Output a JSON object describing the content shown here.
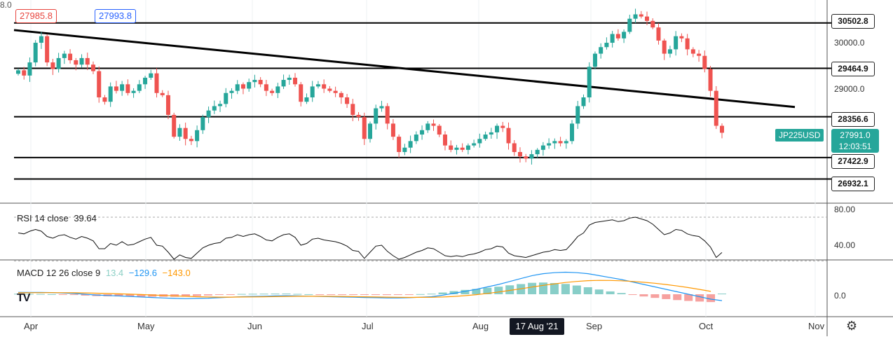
{
  "header": {
    "bid": "27985.8",
    "spread": "8.0",
    "ask": "27993.8"
  },
  "symbol": "JP225USD",
  "current": {
    "price": "27991.0",
    "countdown": "12:03:51"
  },
  "rsi": {
    "label": "RSI 14 close",
    "value": "39.64",
    "ticks": [
      "80.00",
      "40.00"
    ]
  },
  "macd": {
    "label": "MACD 12 26 close 9",
    "hist": "13.4",
    "macd": "−129.6",
    "signal": "−143.0",
    "tick": "0.0"
  },
  "x_axis": {
    "months": [
      "Apr",
      "May",
      "Jun",
      "Jul",
      "Aug",
      "Sep",
      "Oct",
      "Nov"
    ],
    "highlight": "17 Aug '21"
  },
  "colors": {
    "up": "#26a69a",
    "down": "#ef5350",
    "macd_line": "#2196f3",
    "signal_line": "#ff9800",
    "hist_up": "#26a69a",
    "hist_down": "#ef5350"
  },
  "icons": {
    "settings": "gear-icon",
    "logo": "tradingview-logo-icon"
  },
  "chart_data": {
    "type": "candlestick",
    "price_ticks": [
      "30000.0",
      "29000.0"
    ],
    "levels": [
      "30502.8",
      "29464.9",
      "28356.6",
      "27422.9",
      "26932.1"
    ],
    "level_values": [
      30502.8,
      29464.9,
      28356.6,
      27422.9,
      26932.1
    ],
    "trendline": {
      "start_value": 30340,
      "end_value": 28580
    },
    "ylim": [
      26700,
      30900
    ],
    "closes": [
      29420,
      29300,
      29600,
      30050,
      30200,
      29600,
      29450,
      29700,
      29800,
      29650,
      29550,
      29700,
      29550,
      29400,
      28800,
      28700,
      29050,
      28950,
      29100,
      28900,
      28950,
      29100,
      29250,
      29350,
      28900,
      28850,
      28400,
      27900,
      28100,
      27850,
      27800,
      28050,
      28350,
      28500,
      28600,
      28650,
      28900,
      28950,
      29100,
      29000,
      29150,
      29200,
      29100,
      28950,
      28900,
      29050,
      29200,
      29250,
      29100,
      28700,
      28800,
      29050,
      29100,
      29000,
      28950,
      28900,
      28800,
      28650,
      28400,
      28350,
      27850,
      28200,
      28550,
      28600,
      28200,
      27900,
      27550,
      27650,
      27800,
      27950,
      28050,
      28200,
      28150,
      27950,
      27700,
      27600,
      27650,
      27600,
      27700,
      27750,
      27850,
      27950,
      28000,
      28150,
      28100,
      27750,
      27550,
      27450,
      27400,
      27500,
      27600,
      27700,
      27750,
      27800,
      27750,
      27800,
      28200,
      28600,
      28800,
      29500,
      29800,
      29950,
      30050,
      30250,
      30150,
      30300,
      30600,
      30700,
      30650,
      30550,
      30400,
      30100,
      29800,
      29900,
      30200,
      30150,
      29900,
      29800,
      29750,
      29450,
      28950,
      28150,
      27991
    ],
    "rsi_values": [
      62,
      61,
      64,
      66,
      64,
      58,
      56,
      59,
      60,
      57,
      55,
      58,
      56,
      53,
      44,
      44,
      50,
      48,
      52,
      48,
      49,
      52,
      55,
      57,
      48,
      47,
      40,
      32,
      37,
      34,
      33,
      39,
      45,
      48,
      50,
      51,
      56,
      57,
      60,
      58,
      60,
      61,
      58,
      54,
      53,
      57,
      60,
      61,
      57,
      48,
      50,
      55,
      56,
      54,
      53,
      52,
      50,
      47,
      42,
      41,
      33,
      40,
      47,
      48,
      41,
      36,
      32,
      34,
      37,
      40,
      42,
      45,
      44,
      40,
      36,
      35,
      36,
      35,
      37,
      38,
      40,
      43,
      44,
      47,
      46,
      39,
      36,
      35,
      34,
      36,
      38,
      40,
      41,
      43,
      42,
      43,
      50,
      58,
      62,
      71,
      74,
      75,
      76,
      77,
      75,
      76,
      79,
      80,
      78,
      76,
      72,
      66,
      60,
      62,
      66,
      65,
      61,
      59,
      58,
      53,
      46,
      34,
      39.64
    ],
    "macd_values": [
      40,
      39,
      38,
      35,
      25,
      15,
      0,
      -15,
      -25,
      -35,
      -45,
      -55,
      -65,
      -75,
      -85,
      -90,
      -85,
      -80,
      -70,
      -60,
      -50,
      -45,
      -40,
      -35,
      -30,
      -35,
      -40,
      -45,
      -50,
      -55,
      -60,
      -65,
      -70,
      -75,
      -75,
      -70,
      -60,
      -50,
      -20,
      20,
      60,
      100,
      150,
      200,
      260,
      320,
      380,
      420,
      440,
      450,
      440,
      420,
      380,
      340,
      300,
      250,
      200,
      150,
      100,
      50,
      0,
      -50,
      -100,
      -129.6
    ],
    "signal_values": [
      30,
      31,
      32,
      33,
      32,
      30,
      27,
      22,
      16,
      9,
      2,
      -6,
      -15,
      -24,
      -33,
      -42,
      -50,
      -55,
      -58,
      -58,
      -56,
      -54,
      -51,
      -48,
      -44,
      -42,
      -41,
      -42,
      -43,
      -45,
      -48,
      -51,
      -55,
      -59,
      -62,
      -64,
      -63,
      -61,
      -55,
      -44,
      -28,
      -8,
      17,
      46,
      78,
      112,
      147,
      181,
      212,
      240,
      262,
      277,
      283,
      282,
      275,
      262,
      245,
      224,
      199,
      169,
      136,
      99,
      59,
      -143.0
    ]
  }
}
